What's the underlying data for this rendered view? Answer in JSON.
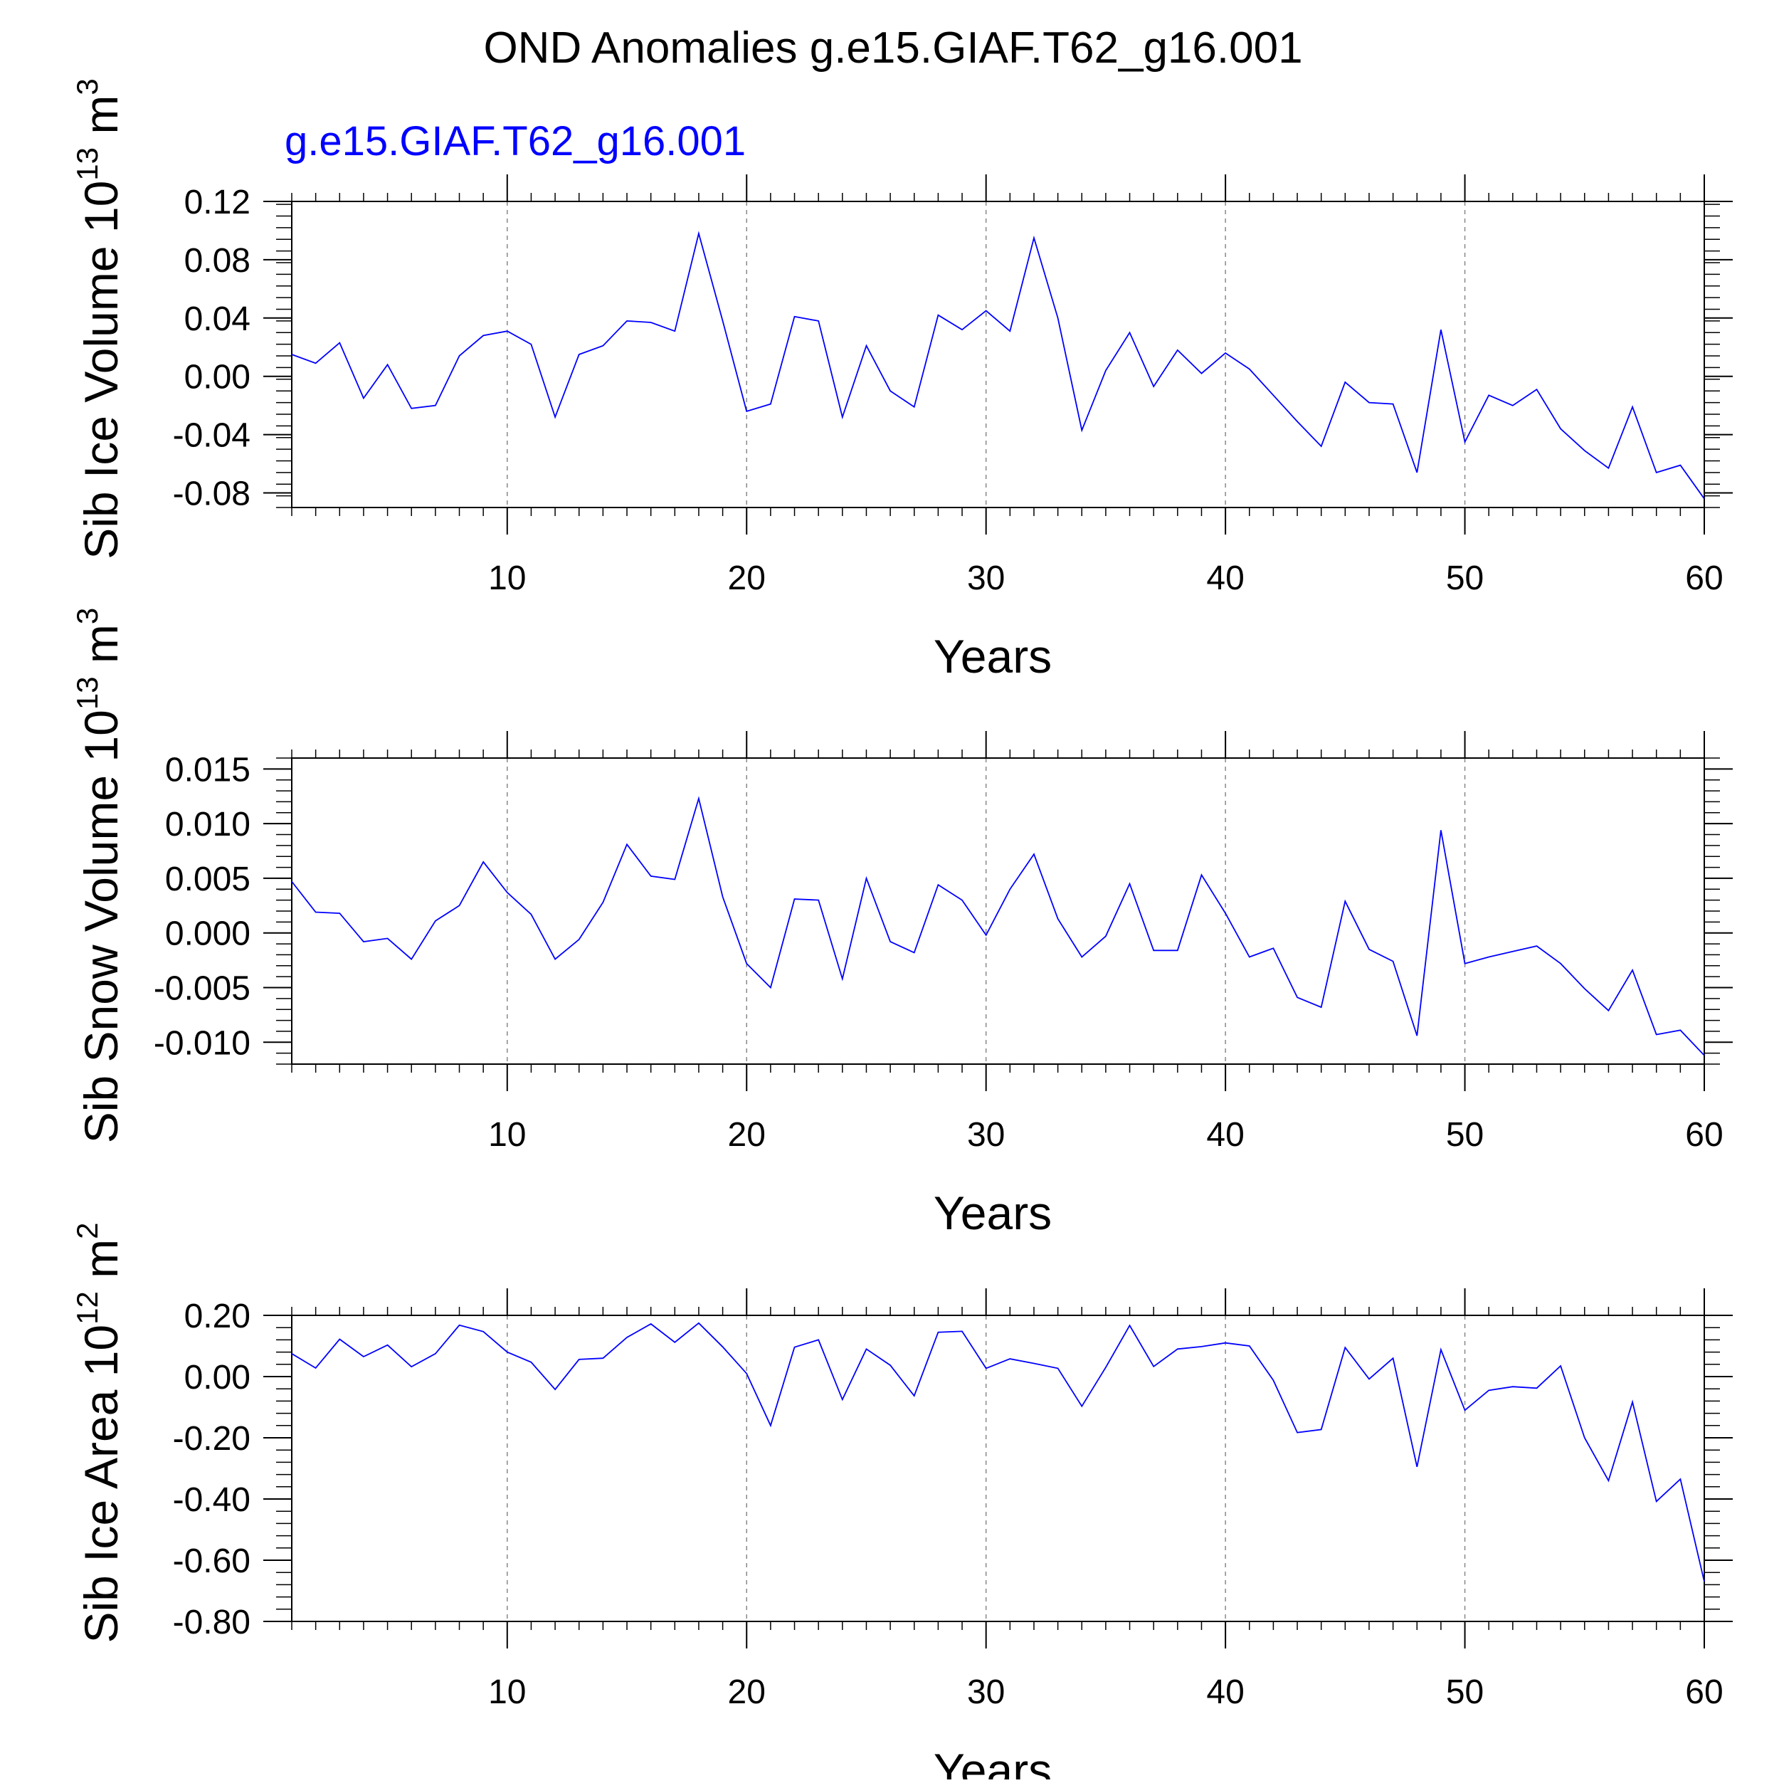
{
  "title": "OND Anomalies g.e15.GIAF.T62_g16.001",
  "series_label": "g.e15.GIAF.T62_g16.001",
  "colors": {
    "series": "#0000ff",
    "axis": "#000000",
    "grid": "#888888"
  },
  "chart_data": [
    {
      "type": "line",
      "title": "",
      "xlabel": "Years",
      "ylabel_main": "Sib Ice Volume 10",
      "ylabel_sup": "13",
      "ylabel_unit": "m",
      "ylabel_unit_sup": "3",
      "xlim": [
        1,
        60
      ],
      "ylim": [
        -0.09,
        0.12
      ],
      "xticks": [
        10,
        20,
        30,
        40,
        50,
        60
      ],
      "yticks": [
        -0.08,
        -0.04,
        0.0,
        0.04,
        0.08,
        0.12
      ],
      "ytick_labels": [
        "-0.08",
        "-0.04",
        "0.00",
        "0.04",
        "0.08",
        "0.12"
      ],
      "grid_x": true,
      "series": [
        {
          "name": "g.e15.GIAF.T62_g16.001",
          "x": [
            1,
            2,
            3,
            4,
            5,
            6,
            7,
            8,
            9,
            10,
            11,
            12,
            13,
            14,
            15,
            16,
            17,
            18,
            19,
            20,
            21,
            22,
            23,
            24,
            25,
            26,
            27,
            28,
            29,
            30,
            31,
            32,
            33,
            34,
            35,
            36,
            37,
            38,
            39,
            40,
            41,
            42,
            43,
            44,
            45,
            46,
            47,
            48,
            49,
            50,
            51,
            52,
            53,
            54,
            55,
            56,
            57,
            58,
            59,
            60
          ],
          "values": [
            0.015,
            0.009,
            0.023,
            -0.015,
            0.008,
            -0.022,
            -0.02,
            0.014,
            0.028,
            0.031,
            0.022,
            -0.028,
            0.015,
            0.021,
            0.038,
            0.037,
            0.031,
            0.098,
            0.038,
            -0.024,
            -0.019,
            0.041,
            0.038,
            -0.028,
            0.021,
            -0.01,
            -0.021,
            0.042,
            0.032,
            0.045,
            0.031,
            0.095,
            0.04,
            -0.037,
            0.004,
            0.03,
            -0.007,
            0.018,
            0.002,
            0.016,
            0.005,
            -0.013,
            -0.031,
            -0.048,
            -0.004,
            -0.018,
            -0.019,
            -0.066,
            0.032,
            -0.045,
            -0.013,
            -0.02,
            -0.009,
            -0.036,
            -0.051,
            -0.063,
            -0.021,
            -0.066,
            -0.061,
            -0.084
          ]
        }
      ]
    },
    {
      "type": "line",
      "title": "",
      "xlabel": "Years",
      "ylabel_main": "Sib Snow Volume 10",
      "ylabel_sup": "13",
      "ylabel_unit": "m",
      "ylabel_unit_sup": "3",
      "xlim": [
        1,
        60
      ],
      "ylim": [
        -0.012,
        0.016
      ],
      "xticks": [
        10,
        20,
        30,
        40,
        50,
        60
      ],
      "yticks": [
        -0.01,
        -0.005,
        0.0,
        0.005,
        0.01,
        0.015
      ],
      "ytick_labels": [
        "-0.010",
        "-0.005",
        "0.000",
        "0.005",
        "0.010",
        "0.015"
      ],
      "grid_x": true,
      "series": [
        {
          "name": "g.e15.GIAF.T62_g16.001",
          "x": [
            1,
            2,
            3,
            4,
            5,
            6,
            7,
            8,
            9,
            10,
            11,
            12,
            13,
            14,
            15,
            16,
            17,
            18,
            19,
            20,
            21,
            22,
            23,
            24,
            25,
            26,
            27,
            28,
            29,
            30,
            31,
            32,
            33,
            34,
            35,
            36,
            37,
            38,
            39,
            40,
            41,
            42,
            43,
            44,
            45,
            46,
            47,
            48,
            49,
            50,
            51,
            52,
            53,
            54,
            55,
            56,
            57,
            58,
            59,
            60
          ],
          "values": [
            0.0047,
            0.0019,
            0.0018,
            -0.0008,
            -0.0005,
            -0.0024,
            0.0011,
            0.0025,
            0.0065,
            0.0037,
            0.0017,
            -0.0024,
            -0.0006,
            0.0028,
            0.0081,
            0.0052,
            0.0049,
            0.0123,
            0.0033,
            -0.0028,
            -0.005,
            0.0031,
            0.003,
            -0.0042,
            0.005,
            -0.0008,
            -0.0018,
            0.0044,
            0.003,
            -0.0002,
            0.004,
            0.0072,
            0.0013,
            -0.0022,
            -0.0003,
            0.0045,
            -0.0016,
            -0.0016,
            0.0053,
            0.0018,
            -0.0022,
            -0.0014,
            -0.0059,
            -0.0068,
            0.0029,
            -0.0015,
            -0.0026,
            -0.0094,
            0.0094,
            -0.0028,
            -0.0022,
            -0.0017,
            -0.0012,
            -0.0028,
            -0.0051,
            -0.0071,
            -0.0034,
            -0.0093,
            -0.0089,
            -0.0112
          ]
        }
      ]
    },
    {
      "type": "line",
      "title": "",
      "xlabel": "Years",
      "ylabel_main": "Sib Ice Area 10",
      "ylabel_sup": "12",
      "ylabel_unit": "m",
      "ylabel_unit_sup": "2",
      "xlim": [
        1,
        60
      ],
      "ylim": [
        -0.8,
        0.2
      ],
      "xticks": [
        10,
        20,
        30,
        40,
        50,
        60
      ],
      "yticks": [
        -0.8,
        -0.6,
        -0.4,
        -0.2,
        0.0,
        0.2
      ],
      "ytick_labels": [
        "-0.80",
        "-0.60",
        "-0.40",
        "-0.20",
        "0.00",
        "0.20"
      ],
      "grid_x": true,
      "series": [
        {
          "name": "g.e15.GIAF.T62_g16.001",
          "x": [
            1,
            2,
            3,
            4,
            5,
            6,
            7,
            8,
            9,
            10,
            11,
            12,
            13,
            14,
            15,
            16,
            17,
            18,
            19,
            20,
            21,
            22,
            23,
            24,
            25,
            26,
            27,
            28,
            29,
            30,
            31,
            32,
            33,
            34,
            35,
            36,
            37,
            38,
            39,
            40,
            41,
            42,
            43,
            44,
            45,
            46,
            47,
            48,
            49,
            50,
            51,
            52,
            53,
            54,
            55,
            56,
            57,
            58,
            59,
            60
          ],
          "values": [
            0.075,
            0.028,
            0.122,
            0.065,
            0.103,
            0.032,
            0.075,
            0.168,
            0.147,
            0.08,
            0.047,
            -0.042,
            0.056,
            0.06,
            0.128,
            0.172,
            0.112,
            0.175,
            0.097,
            0.01,
            -0.16,
            0.096,
            0.12,
            -0.075,
            0.09,
            0.037,
            -0.063,
            0.145,
            0.148,
            0.027,
            0.058,
            0.043,
            0.027,
            -0.097,
            0.03,
            0.167,
            0.033,
            0.09,
            0.098,
            0.11,
            0.1,
            -0.012,
            -0.183,
            -0.173,
            0.095,
            -0.008,
            0.06,
            -0.295,
            0.088,
            -0.11,
            -0.045,
            -0.033,
            -0.038,
            0.035,
            -0.2,
            -0.34,
            -0.083,
            -0.408,
            -0.335,
            -0.67
          ]
        }
      ]
    }
  ]
}
